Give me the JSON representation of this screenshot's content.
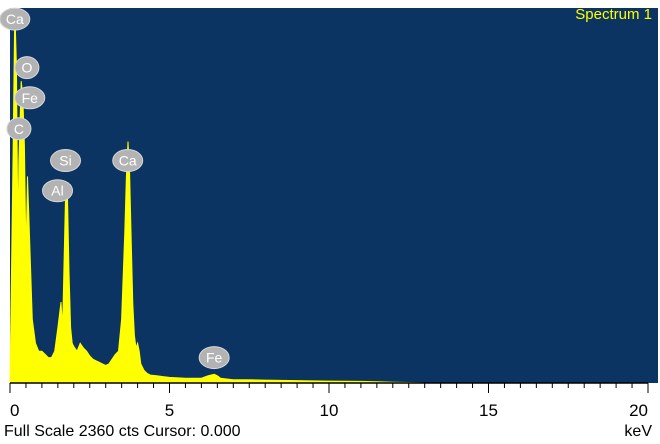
{
  "chart_data": {
    "type": "line",
    "title": "Spectrum 1",
    "xlabel": "keV",
    "ylabel": "",
    "xlim": [
      0,
      20
    ],
    "ylim": [
      0,
      2360
    ],
    "x_ticks": [
      0,
      5,
      10,
      15,
      20
    ],
    "tick_labels": [
      "0",
      "5",
      "10",
      "15",
      "20"
    ],
    "series": [
      {
        "color": "#ffff00",
        "x": [
          0.0,
          0.1,
          0.15,
          0.2,
          0.25,
          0.28,
          0.35,
          0.4,
          0.45,
          0.5,
          0.55,
          0.6,
          0.65,
          0.7,
          0.8,
          0.9,
          1.0,
          1.1,
          1.2,
          1.3,
          1.4,
          1.5,
          1.6,
          1.65,
          1.7,
          1.75,
          1.8,
          1.85,
          1.9,
          1.95,
          2.0,
          2.1,
          2.2,
          2.3,
          2.4,
          2.5,
          2.6,
          2.7,
          2.8,
          2.9,
          3.0,
          3.1,
          3.2,
          3.3,
          3.4,
          3.5,
          3.6,
          3.65,
          3.7,
          3.75,
          3.8,
          3.85,
          3.9,
          3.95,
          4.0,
          4.05,
          4.1,
          4.2,
          4.3,
          4.4,
          4.6,
          4.8,
          5.0,
          5.5,
          6.0,
          6.2,
          6.4,
          6.5,
          6.6,
          6.8,
          7.0,
          7.5,
          8.0,
          9.0,
          10.0,
          11.0,
          12.0,
          12.5,
          13.0
        ],
        "y": [
          0,
          1500,
          2360,
          2000,
          900,
          1400,
          1900,
          1800,
          1500,
          800,
          1300,
          1000,
          700,
          400,
          250,
          200,
          200,
          180,
          160,
          160,
          200,
          350,
          510,
          350,
          800,
          1250,
          1200,
          700,
          350,
          250,
          230,
          200,
          250,
          220,
          200,
          170,
          150,
          140,
          130,
          120,
          110,
          120,
          150,
          180,
          200,
          400,
          950,
          1300,
          1520,
          1320,
          900,
          500,
          300,
          220,
          250,
          200,
          120,
          80,
          60,
          50,
          45,
          40,
          35,
          30,
          30,
          45,
          55,
          45,
          30,
          25,
          20,
          20,
          18,
          15,
          12,
          10,
          5,
          3,
          0
        ]
      }
    ],
    "peak_labels": [
      {
        "label": "Ca",
        "x": 0.15,
        "y": 2290
      },
      {
        "label": "O",
        "x": 0.53,
        "y": 1985
      },
      {
        "label": "Fe",
        "x": 0.62,
        "y": 1795
      },
      {
        "label": "C",
        "x": 0.28,
        "y": 1600
      },
      {
        "label": "Si",
        "x": 1.74,
        "y": 1400
      },
      {
        "label": "Al",
        "x": 1.49,
        "y": 1210
      },
      {
        "label": "Ca",
        "x": 3.69,
        "y": 1400
      },
      {
        "label": "Fe",
        "x": 6.4,
        "y": 160
      }
    ]
  },
  "footer": {
    "full_scale": "Full Scale 2360 cts Cursor: 0.000",
    "unit": "keV"
  }
}
